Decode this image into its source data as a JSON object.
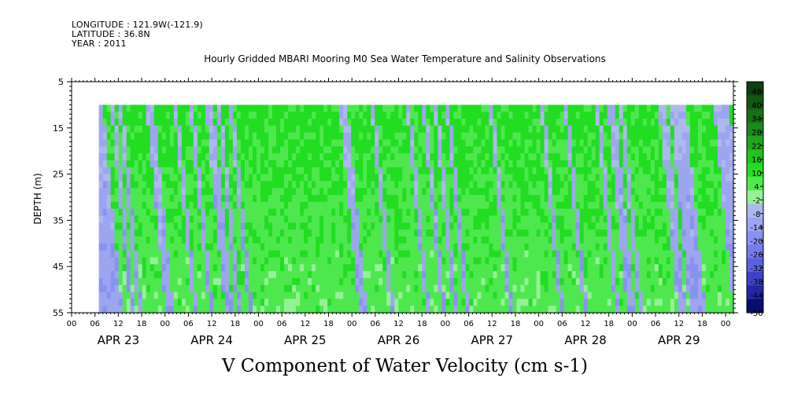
{
  "header": {
    "longitude": "LONGITUDE : 121.9W(-121.9)",
    "latitude": "LATITUDE : 36.8N",
    "year": "YEAR : 2011"
  },
  "chart_data": {
    "type": "heatmap",
    "title": "Hourly Gridded MBARI Mooring M0 Sea Water Temperature and Salinity Observations",
    "xlabel": "V Component of Water Velocity (cm s-1)",
    "ylabel": "DEPTH (m)",
    "ylim": [
      55,
      5
    ],
    "yticks": [
      5,
      15,
      25,
      35,
      45,
      55
    ],
    "hour_ticks": [
      "00",
      "06",
      "12",
      "18",
      "00",
      "06",
      "12",
      "18",
      "00",
      "06",
      "12",
      "18",
      "00",
      "06",
      "12",
      "18",
      "00",
      "06",
      "12",
      "18",
      "00",
      "06",
      "12",
      "18",
      "00",
      "06",
      "12",
      "18",
      "00"
    ],
    "date_labels": [
      "APR 23",
      "APR 24",
      "APR 25",
      "APR 26",
      "APR 27",
      "APR 28",
      "APR 29"
    ],
    "x_start": "2011-04-23 00:00",
    "x_end": "2011-04-30 02:00",
    "data_start": "2011-04-23 07:00",
    "data_top_depth": 10,
    "colorbar": {
      "levels": [
        46,
        40,
        34,
        28,
        22,
        16,
        10,
        4,
        -2,
        -8,
        -14,
        -20,
        -26,
        -32,
        -38,
        -44,
        -50
      ],
      "colors": [
        "#0f3f0f",
        "#145714",
        "#176f17",
        "#1b891b",
        "#1fa51f",
        "#21c221",
        "#22dd22",
        "#4ee84e",
        "#96f096",
        "#aeb8ee",
        "#9ea5f0",
        "#8a92f0",
        "#747cec",
        "#5a61e0",
        "#3d43c8",
        "#2226a6",
        "#0a0c6e"
      ]
    },
    "profile": {
      "surface_v_sign": [
        -1,
        1,
        1,
        -1,
        1,
        -1,
        1,
        1,
        1,
        1,
        1,
        1,
        -1,
        -1,
        1,
        1,
        1,
        1,
        1,
        -1,
        1,
        1,
        1,
        -1,
        1,
        1,
        1,
        -1,
        -1,
        1,
        -1,
        1,
        1,
        -1,
        1,
        1,
        1,
        1,
        1,
        1,
        1,
        1,
        1,
        1,
        1,
        1,
        1,
        1,
        1,
        1,
        1,
        1,
        1,
        1,
        1,
        1,
        1,
        1,
        1,
        1,
        1,
        -1,
        -1,
        1,
        1,
        1,
        1,
        1,
        1,
        -1,
        1,
        1,
        1,
        1,
        1,
        1,
        1,
        1,
        -1,
        1,
        1,
        1,
        -1,
        1,
        1,
        -1,
        1,
        1,
        -1,
        1,
        1,
        1,
        1,
        1,
        1,
        1,
        1,
        1,
        1,
        -1,
        1,
        1,
        1,
        1,
        1,
        1,
        1,
        1,
        1,
        1,
        1,
        1,
        -1,
        1,
        1,
        1,
        1,
        1,
        -1,
        1,
        1,
        1,
        1,
        1,
        1,
        1,
        -1,
        1,
        1,
        -1,
        -1,
        1,
        -1,
        1,
        1,
        1,
        1,
        1,
        1,
        1,
        1,
        1,
        -1,
        -1,
        1,
        -1,
        -1,
        -1,
        -1,
        1,
        1,
        1,
        1,
        1,
        1,
        1,
        -1,
        -1,
        -1,
        -1,
        1
      ],
      "note_units": "cm s-1"
    }
  }
}
